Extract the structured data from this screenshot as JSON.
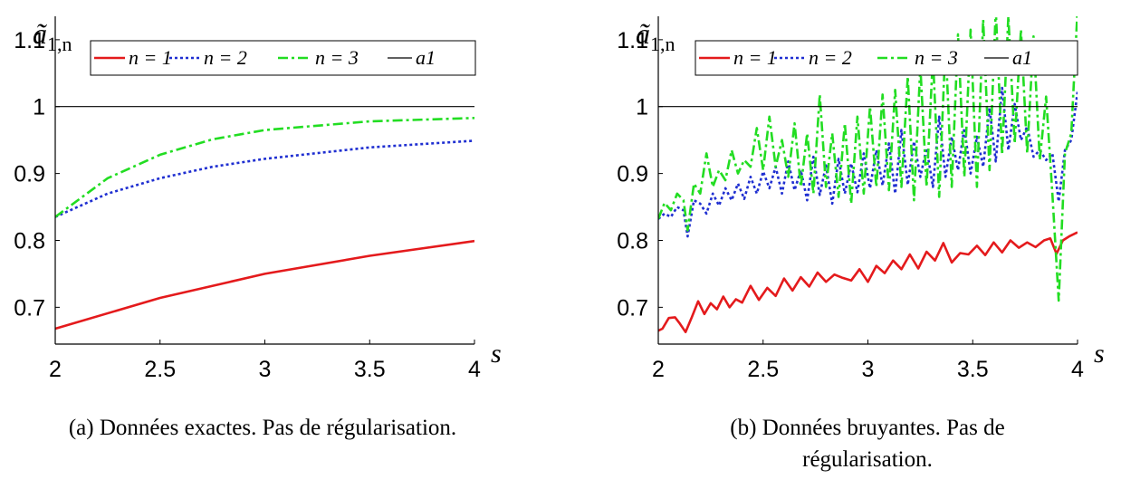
{
  "chart_data": [
    {
      "type": "line",
      "ylabel": "ã1,n",
      "xlabel": "s",
      "xlim": [
        2,
        4
      ],
      "ylim": [
        0.645,
        1.135
      ],
      "xticks": [
        "2",
        "2.5",
        "3",
        "3.5",
        "4"
      ],
      "yticks": [
        "0.7",
        "0.8",
        "0.9",
        "1",
        "1.1"
      ],
      "legend": {
        "position": "top",
        "entries": [
          "n = 1",
          "n = 2",
          "n = 3",
          "a1"
        ]
      },
      "grid": false,
      "caption": "(a) Données exactes. Pas de régularisation.",
      "series": [
        {
          "name": "n = 1",
          "color": "#e41a1c",
          "style": "solid",
          "x": [
            2,
            2.5,
            3,
            3.5,
            4
          ],
          "values": [
            0.668,
            0.714,
            0.75,
            0.777,
            0.799
          ]
        },
        {
          "name": "n = 2",
          "color": "#1f2fd1",
          "style": "dotted",
          "x": [
            2,
            2.25,
            2.5,
            2.75,
            3,
            3.5,
            4
          ],
          "values": [
            0.835,
            0.87,
            0.893,
            0.91,
            0.922,
            0.939,
            0.949
          ]
        },
        {
          "name": "n = 3",
          "color": "#22dd22",
          "style": "dashdot",
          "x": [
            2,
            2.25,
            2.5,
            2.75,
            3,
            3.5,
            4
          ],
          "values": [
            0.835,
            0.893,
            0.928,
            0.951,
            0.965,
            0.978,
            0.983
          ]
        },
        {
          "name": "a1",
          "color": "#000000",
          "style": "solid",
          "x": [
            2,
            4
          ],
          "values": [
            1,
            1
          ]
        }
      ]
    },
    {
      "type": "line",
      "ylabel": "ã1,n",
      "xlabel": "s",
      "xlim": [
        2,
        4
      ],
      "ylim": [
        0.645,
        1.135
      ],
      "xticks": [
        "2",
        "2.5",
        "3",
        "3.5",
        "4"
      ],
      "yticks": [
        "0.7",
        "0.8",
        "0.9",
        "1",
        "1.1"
      ],
      "legend": {
        "position": "top",
        "entries": [
          "n = 1",
          "n = 2",
          "n = 3",
          "a1"
        ]
      },
      "grid": false,
      "caption": [
        "(b) Données bruyantes. Pas de",
        "régularisation."
      ],
      "series": [
        {
          "name": "n = 1",
          "color": "#e41a1c",
          "style": "solid",
          "x": [
            2.0,
            2.02,
            2.05,
            2.08,
            2.1,
            2.13,
            2.16,
            2.19,
            2.22,
            2.25,
            2.28,
            2.31,
            2.34,
            2.37,
            2.4,
            2.44,
            2.48,
            2.52,
            2.56,
            2.6,
            2.64,
            2.68,
            2.72,
            2.76,
            2.8,
            2.84,
            2.88,
            2.92,
            2.96,
            3.0,
            3.04,
            3.08,
            3.12,
            3.16,
            3.2,
            3.24,
            3.28,
            3.32,
            3.36,
            3.4,
            3.44,
            3.48,
            3.52,
            3.56,
            3.6,
            3.64,
            3.68,
            3.72,
            3.76,
            3.8,
            3.84,
            3.87,
            3.9,
            3.93,
            3.96,
            4.0
          ],
          "values": [
            0.665,
            0.668,
            0.684,
            0.685,
            0.677,
            0.663,
            0.685,
            0.709,
            0.69,
            0.706,
            0.697,
            0.716,
            0.7,
            0.712,
            0.707,
            0.732,
            0.711,
            0.729,
            0.717,
            0.743,
            0.725,
            0.745,
            0.731,
            0.752,
            0.738,
            0.749,
            0.744,
            0.74,
            0.757,
            0.738,
            0.762,
            0.751,
            0.77,
            0.757,
            0.779,
            0.758,
            0.783,
            0.77,
            0.796,
            0.767,
            0.781,
            0.779,
            0.792,
            0.778,
            0.797,
            0.782,
            0.8,
            0.789,
            0.797,
            0.79,
            0.8,
            0.803,
            0.78,
            0.8,
            0.806,
            0.812
          ]
        },
        {
          "name": "n = 2",
          "color": "#1f2fd1",
          "style": "dotted",
          "x": [
            2.0,
            2.03,
            2.06,
            2.09,
            2.12,
            2.14,
            2.17,
            2.2,
            2.23,
            2.26,
            2.29,
            2.32,
            2.35,
            2.38,
            2.41,
            2.44,
            2.47,
            2.5,
            2.53,
            2.56,
            2.59,
            2.62,
            2.65,
            2.68,
            2.71,
            2.74,
            2.77,
            2.8,
            2.83,
            2.86,
            2.89,
            2.92,
            2.95,
            2.98,
            3.01,
            3.04,
            3.07,
            3.1,
            3.13,
            3.16,
            3.19,
            3.22,
            3.25,
            3.28,
            3.31,
            3.34,
            3.37,
            3.4,
            3.43,
            3.46,
            3.49,
            3.52,
            3.55,
            3.58,
            3.61,
            3.64,
            3.67,
            3.7,
            3.73,
            3.76,
            3.79,
            3.82,
            3.85,
            3.88,
            3.91,
            3.94,
            3.97,
            4.0
          ],
          "values": [
            0.832,
            0.84,
            0.835,
            0.85,
            0.845,
            0.806,
            0.86,
            0.855,
            0.84,
            0.87,
            0.852,
            0.878,
            0.86,
            0.885,
            0.862,
            0.895,
            0.87,
            0.903,
            0.878,
            0.91,
            0.87,
            0.918,
            0.875,
            0.905,
            0.86,
            0.925,
            0.868,
            0.912,
            0.855,
            0.922,
            0.87,
            0.915,
            0.872,
            0.93,
            0.878,
            0.935,
            0.882,
            0.945,
            0.87,
            0.965,
            0.883,
            0.948,
            0.895,
            0.938,
            0.88,
            0.985,
            0.895,
            0.955,
            0.905,
            0.968,
            0.9,
            0.955,
            0.91,
            0.998,
            0.918,
            1.028,
            0.935,
            1.004,
            0.95,
            0.97,
            0.925,
            0.935,
            0.92,
            0.93,
            0.858,
            0.935,
            0.95,
            1.022
          ]
        },
        {
          "name": "n = 3",
          "color": "#22dd22",
          "style": "dashdot",
          "x": [
            2.0,
            2.03,
            2.06,
            2.09,
            2.12,
            2.14,
            2.17,
            2.2,
            2.23,
            2.26,
            2.29,
            2.32,
            2.35,
            2.38,
            2.41,
            2.44,
            2.47,
            2.5,
            2.53,
            2.56,
            2.59,
            2.62,
            2.65,
            2.68,
            2.71,
            2.74,
            2.77,
            2.8,
            2.83,
            2.86,
            2.89,
            2.92,
            2.95,
            2.98,
            3.01,
            3.04,
            3.07,
            3.1,
            3.13,
            3.16,
            3.19,
            3.22,
            3.25,
            3.28,
            3.31,
            3.34,
            3.37,
            3.4,
            3.43,
            3.46,
            3.49,
            3.52,
            3.55,
            3.58,
            3.61,
            3.64,
            3.67,
            3.7,
            3.73,
            3.76,
            3.79,
            3.82,
            3.85,
            3.88,
            3.91,
            3.94,
            3.97,
            4.0
          ],
          "values": [
            0.832,
            0.856,
            0.845,
            0.87,
            0.86,
            0.815,
            0.885,
            0.87,
            0.93,
            0.88,
            0.905,
            0.89,
            0.935,
            0.9,
            0.92,
            0.91,
            0.968,
            0.905,
            0.985,
            0.91,
            0.95,
            0.895,
            0.975,
            0.88,
            0.96,
            0.87,
            1.018,
            0.88,
            0.96,
            0.865,
            0.975,
            0.855,
            0.985,
            0.87,
            1.0,
            0.88,
            1.018,
            0.875,
            1.025,
            0.88,
            1.045,
            0.86,
            1.06,
            0.88,
            1.075,
            0.865,
            1.095,
            0.88,
            1.108,
            0.895,
            1.115,
            0.88,
            1.13,
            0.905,
            1.145,
            0.928,
            1.135,
            0.945,
            1.115,
            0.93,
            1.105,
            0.92,
            1.015,
            0.87,
            0.71,
            0.93,
            0.96,
            1.145
          ]
        },
        {
          "name": "a1",
          "color": "#000000",
          "style": "solid",
          "x": [
            2,
            4
          ],
          "values": [
            1,
            1
          ]
        }
      ]
    }
  ]
}
